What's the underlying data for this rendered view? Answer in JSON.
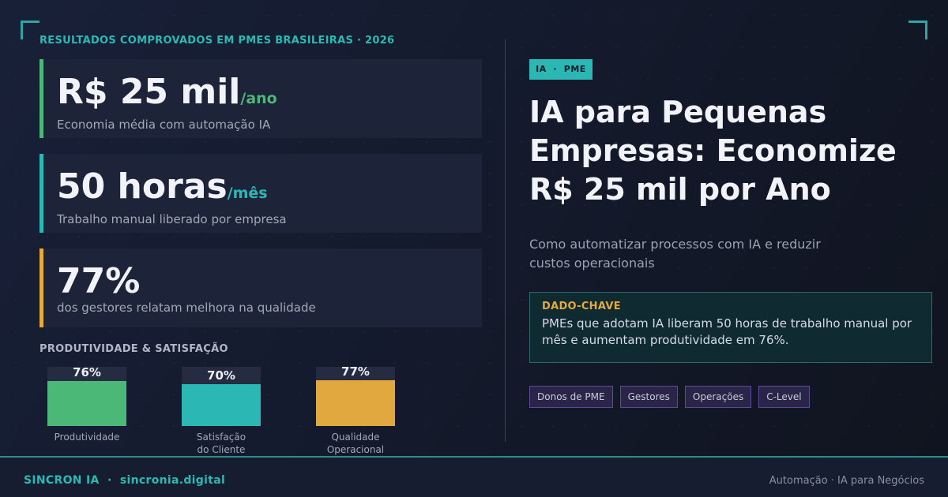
{
  "eyebrow": "RESULTADOS COMPROVADOS EM PMES BRASILEIRAS · 2026",
  "stats": [
    {
      "value": "R$ 25 mil",
      "unit": "/ano",
      "desc": "Economia média com automação IA"
    },
    {
      "value": "50 horas",
      "unit": "/mês",
      "desc": "Trabalho manual liberado por empresa"
    },
    {
      "value": "77%",
      "unit": "",
      "desc": "dos gestores relatam melhora na qualidade"
    }
  ],
  "productivity": {
    "title": "PRODUTIVIDADE & SATISFAÇÃO",
    "bars": [
      {
        "value": 76,
        "label": "76%",
        "name_line1": "Produtividade",
        "name_line2": "",
        "color": "#4cb877"
      },
      {
        "value": 70,
        "label": "70%",
        "name_line1": "Satisfação",
        "name_line2": "do Cliente",
        "color": "#2bb8b4"
      },
      {
        "value": 77,
        "label": "77%",
        "name_line1": "Qualidade",
        "name_line2": "Operacional",
        "color": "#e0a83e"
      }
    ]
  },
  "tag": "IA  ·  PME",
  "headline": "IA para Pequenas Empresas: Economize R$ 25 mil por Ano",
  "subtitle": "Como automatizar processos com IA e reduzir custos operacionais",
  "key": {
    "title": "DADO-CHAVE",
    "text": "PMEs que adotam IA liberam 50 horas de trabalho manual por mês e aumentam produtividade em 76%."
  },
  "chips": [
    "Donos de PME",
    "Gestores",
    "Operações",
    "C-Level"
  ],
  "footer": {
    "brand": "SINCRON IA  ·  sincronia.digital",
    "right": "Automação · IA para Negócios"
  },
  "colors": {
    "accent": "#2bb8b4",
    "green": "#4cb877",
    "amber": "#e6a93c",
    "purple": "#5a4b9a"
  }
}
